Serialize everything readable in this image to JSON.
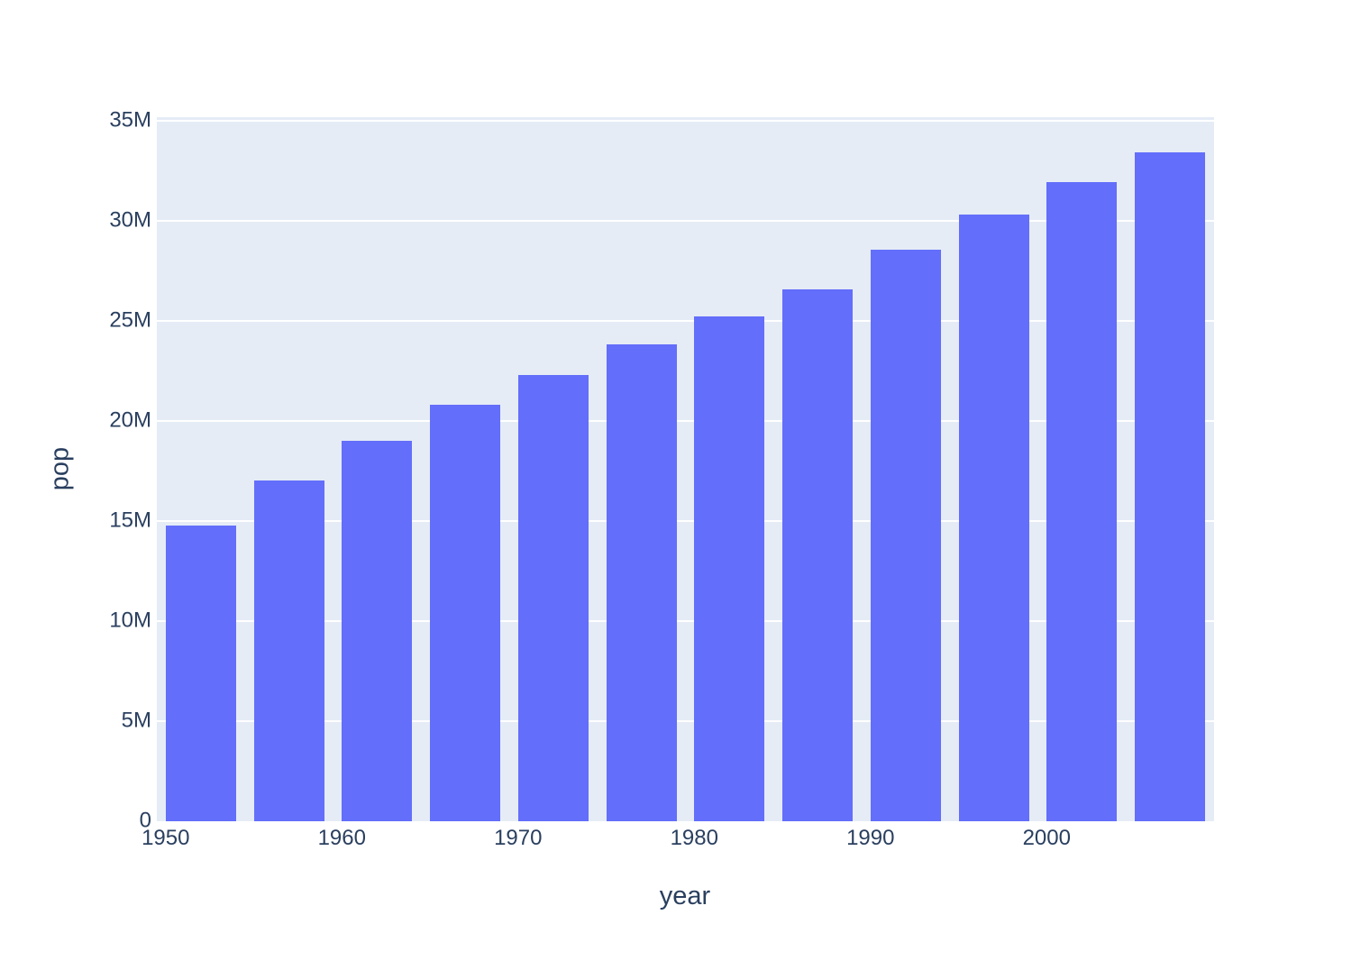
{
  "chart_data": {
    "type": "bar",
    "title": "",
    "xlabel": "year",
    "ylabel": "pop",
    "x": [
      1952,
      1957,
      1962,
      1967,
      1972,
      1977,
      1982,
      1987,
      1992,
      1997,
      2002,
      2007
    ],
    "values": [
      14785584,
      17010154,
      18985849,
      20819767,
      22284500,
      23796400,
      25201900,
      26549700,
      28523502,
      30305843,
      31902268,
      33390141
    ],
    "series_name": "pop",
    "bar_width_years": 4,
    "xlim": [
      1949.5,
      2009.5
    ],
    "ylim": [
      0,
      35160000
    ],
    "xticks": [
      {
        "value": 1950,
        "label": "1950"
      },
      {
        "value": 1960,
        "label": "1960"
      },
      {
        "value": 1970,
        "label": "1970"
      },
      {
        "value": 1980,
        "label": "1980"
      },
      {
        "value": 1990,
        "label": "1990"
      },
      {
        "value": 2000,
        "label": "2000"
      }
    ],
    "yticks": [
      {
        "value": 0,
        "label": "0"
      },
      {
        "value": 5000000,
        "label": "5M"
      },
      {
        "value": 10000000,
        "label": "10M"
      },
      {
        "value": 15000000,
        "label": "15M"
      },
      {
        "value": 20000000,
        "label": "20M"
      },
      {
        "value": 25000000,
        "label": "25M"
      },
      {
        "value": 30000000,
        "label": "30M"
      },
      {
        "value": 35000000,
        "label": "35M"
      }
    ],
    "grid": true,
    "legend": false,
    "colors": {
      "bar": "#636EFA",
      "plot_bg": "#E5ECF6",
      "grid": "#FFFFFF",
      "text": "#2A3F5F",
      "figure_bg": "#FFFFFF"
    }
  }
}
